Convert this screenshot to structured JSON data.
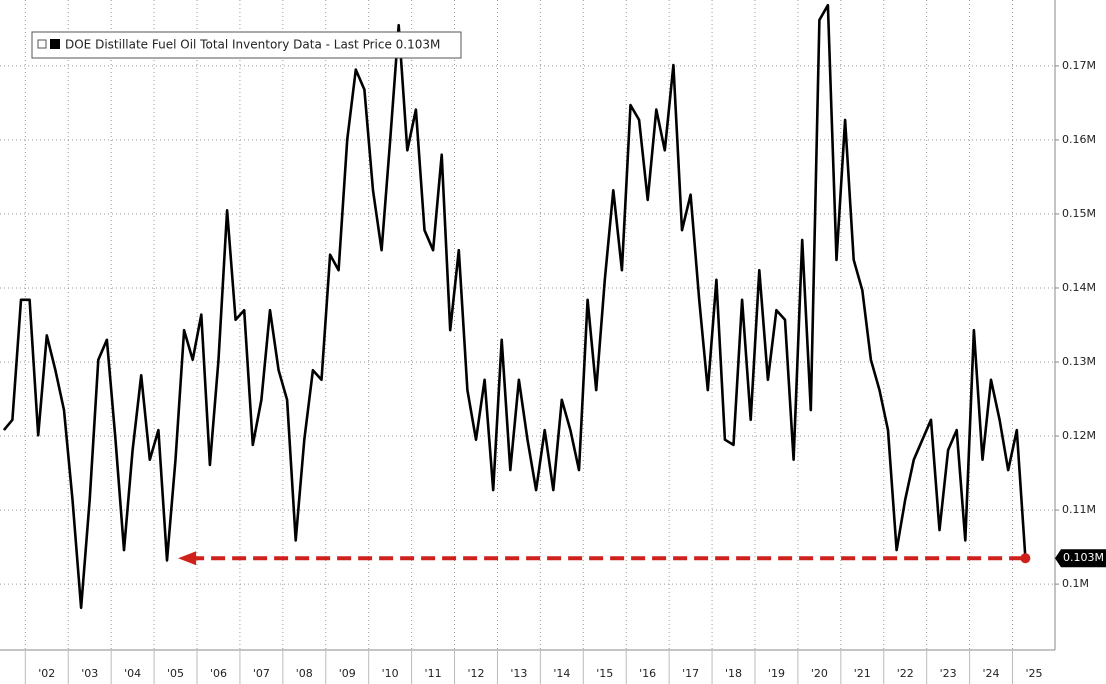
{
  "chart_data": {
    "type": "line",
    "series": [
      {
        "name": "DOE Distillate Fuel Oil Total Inventory Data - Last Price 0.103M",
        "color": "#000000",
        "values": [
          0.1208,
          0.1222,
          0.1384,
          0.1384,
          0.1201,
          0.1336,
          0.1289,
          0.1235,
          0.1114,
          0.0968,
          0.1114,
          0.1303,
          0.133,
          0.1195,
          0.1046,
          0.1181,
          0.1282,
          0.1168,
          0.1208,
          0.1032,
          0.1168,
          0.1343,
          0.1303,
          0.1364,
          0.1161,
          0.1303,
          0.1505,
          0.1357,
          0.137,
          0.1188,
          0.1249,
          0.137,
          0.1289,
          0.1249,
          0.1059,
          0.1195,
          0.1289,
          0.1276,
          0.1445,
          0.1424,
          0.16,
          0.1695,
          0.1668,
          0.1532,
          0.1451,
          0.16,
          0.1755,
          0.1586,
          0.1641,
          0.1478,
          0.1451,
          0.158,
          0.1343,
          0.1451,
          0.1262,
          0.1195,
          0.1276,
          0.1127,
          0.133,
          0.1154,
          0.1276,
          0.1195,
          0.1127,
          0.1208,
          0.1127,
          0.1249,
          0.1208,
          0.1154,
          0.1384,
          0.1262,
          0.1411,
          0.1532,
          0.1424,
          0.1647,
          0.1627,
          0.1519,
          0.1641,
          0.1586,
          0.1701,
          0.1478,
          0.1526,
          0.1384,
          0.1262,
          0.1411,
          0.1195,
          0.1188,
          0.1384,
          0.1222,
          0.1424,
          0.1276,
          0.137,
          0.1357,
          0.1168,
          0.1465,
          0.1235,
          0.1762,
          0.1782,
          0.1438,
          0.1627,
          0.1438,
          0.1397,
          0.1303,
          0.1262,
          0.1208,
          0.1046,
          0.1114,
          0.1168,
          0.1195,
          0.1222,
          0.1073,
          0.1181,
          0.1208,
          0.1059,
          0.1343,
          0.1168,
          0.1276,
          0.1222,
          0.1154,
          0.1208,
          0.1035
        ]
      }
    ],
    "x": [
      2001.5,
      2001.7,
      2001.9,
      2002.1,
      2002.3,
      2002.5,
      2002.7,
      2002.9,
      2003.1,
      2003.3,
      2003.5,
      2003.7,
      2003.9,
      2004.1,
      2004.3,
      2004.5,
      2004.7,
      2004.9,
      2005.1,
      2005.3,
      2005.5,
      2005.7,
      2005.9,
      2006.1,
      2006.3,
      2006.5,
      2006.7,
      2006.9,
      2007.1,
      2007.3,
      2007.5,
      2007.7,
      2007.9,
      2008.1,
      2008.3,
      2008.5,
      2008.7,
      2008.9,
      2009.1,
      2009.3,
      2009.5,
      2009.7,
      2009.9,
      2010.1,
      2010.3,
      2010.5,
      2010.7,
      2010.9,
      2011.1,
      2011.3,
      2011.5,
      2011.7,
      2011.9,
      2012.1,
      2012.3,
      2012.5,
      2012.7,
      2012.9,
      2013.1,
      2013.3,
      2013.5,
      2013.7,
      2013.9,
      2014.1,
      2014.3,
      2014.5,
      2014.7,
      2014.9,
      2015.1,
      2015.3,
      2015.5,
      2015.7,
      2015.9,
      2016.1,
      2016.3,
      2016.5,
      2016.7,
      2016.9,
      2017.1,
      2017.3,
      2017.5,
      2017.7,
      2017.9,
      2018.1,
      2018.3,
      2018.5,
      2018.7,
      2018.9,
      2019.1,
      2019.3,
      2019.5,
      2019.7,
      2019.9,
      2020.1,
      2020.3,
      2020.5,
      2020.7,
      2020.9,
      2021.1,
      2021.3,
      2021.5,
      2021.7,
      2021.9,
      2022.1,
      2022.3,
      2022.5,
      2022.7,
      2022.9,
      2023.1,
      2023.3,
      2023.5,
      2023.7,
      2023.9,
      2024.1,
      2024.3,
      2024.5,
      2024.7,
      2024.9,
      2025.1,
      2025.3
    ],
    "xlim": [
      2001.41,
      2025.99
    ],
    "xticks": [
      {
        "value": 2002,
        "label": "'02"
      },
      {
        "value": 2003,
        "label": "'03"
      },
      {
        "value": 2004,
        "label": "'04"
      },
      {
        "value": 2005,
        "label": "'05"
      },
      {
        "value": 2006,
        "label": "'06"
      },
      {
        "value": 2007,
        "label": "'07"
      },
      {
        "value": 2008,
        "label": "'08"
      },
      {
        "value": 2009,
        "label": "'09"
      },
      {
        "value": 2010,
        "label": "'10"
      },
      {
        "value": 2011,
        "label": "'11"
      },
      {
        "value": 2012,
        "label": "'12"
      },
      {
        "value": 2013,
        "label": "'13"
      },
      {
        "value": 2014,
        "label": "'14"
      },
      {
        "value": 2015,
        "label": "'15"
      },
      {
        "value": 2016,
        "label": "'16"
      },
      {
        "value": 2017,
        "label": "'17"
      },
      {
        "value": 2018,
        "label": "'18"
      },
      {
        "value": 2019,
        "label": "'19"
      },
      {
        "value": 2020,
        "label": "'20"
      },
      {
        "value": 2021,
        "label": "'21"
      },
      {
        "value": 2022,
        "label": "'22"
      },
      {
        "value": 2023,
        "label": "'23"
      },
      {
        "value": 2024,
        "label": "'24"
      },
      {
        "value": 2025,
        "label": "'25"
      }
    ],
    "ylim": [
      0.0911,
      0.1789
    ],
    "yticks": [
      {
        "value": 0.1,
        "label": "0.1M"
      },
      {
        "value": 0.11,
        "label": "0.11M"
      },
      {
        "value": 0.12,
        "label": "0.12M"
      },
      {
        "value": 0.13,
        "label": "0.13M"
      },
      {
        "value": 0.14,
        "label": "0.14M"
      },
      {
        "value": 0.15,
        "label": "0.15M"
      },
      {
        "value": 0.16,
        "label": "0.16M"
      },
      {
        "value": 0.17,
        "label": "0.17M"
      }
    ],
    "grid": true,
    "legend": "upper left",
    "last_price_label": "0.103M",
    "reference_line": {
      "y": 0.1035,
      "from": 2005.56,
      "to": 2025.35,
      "color": "#d0201c"
    }
  }
}
